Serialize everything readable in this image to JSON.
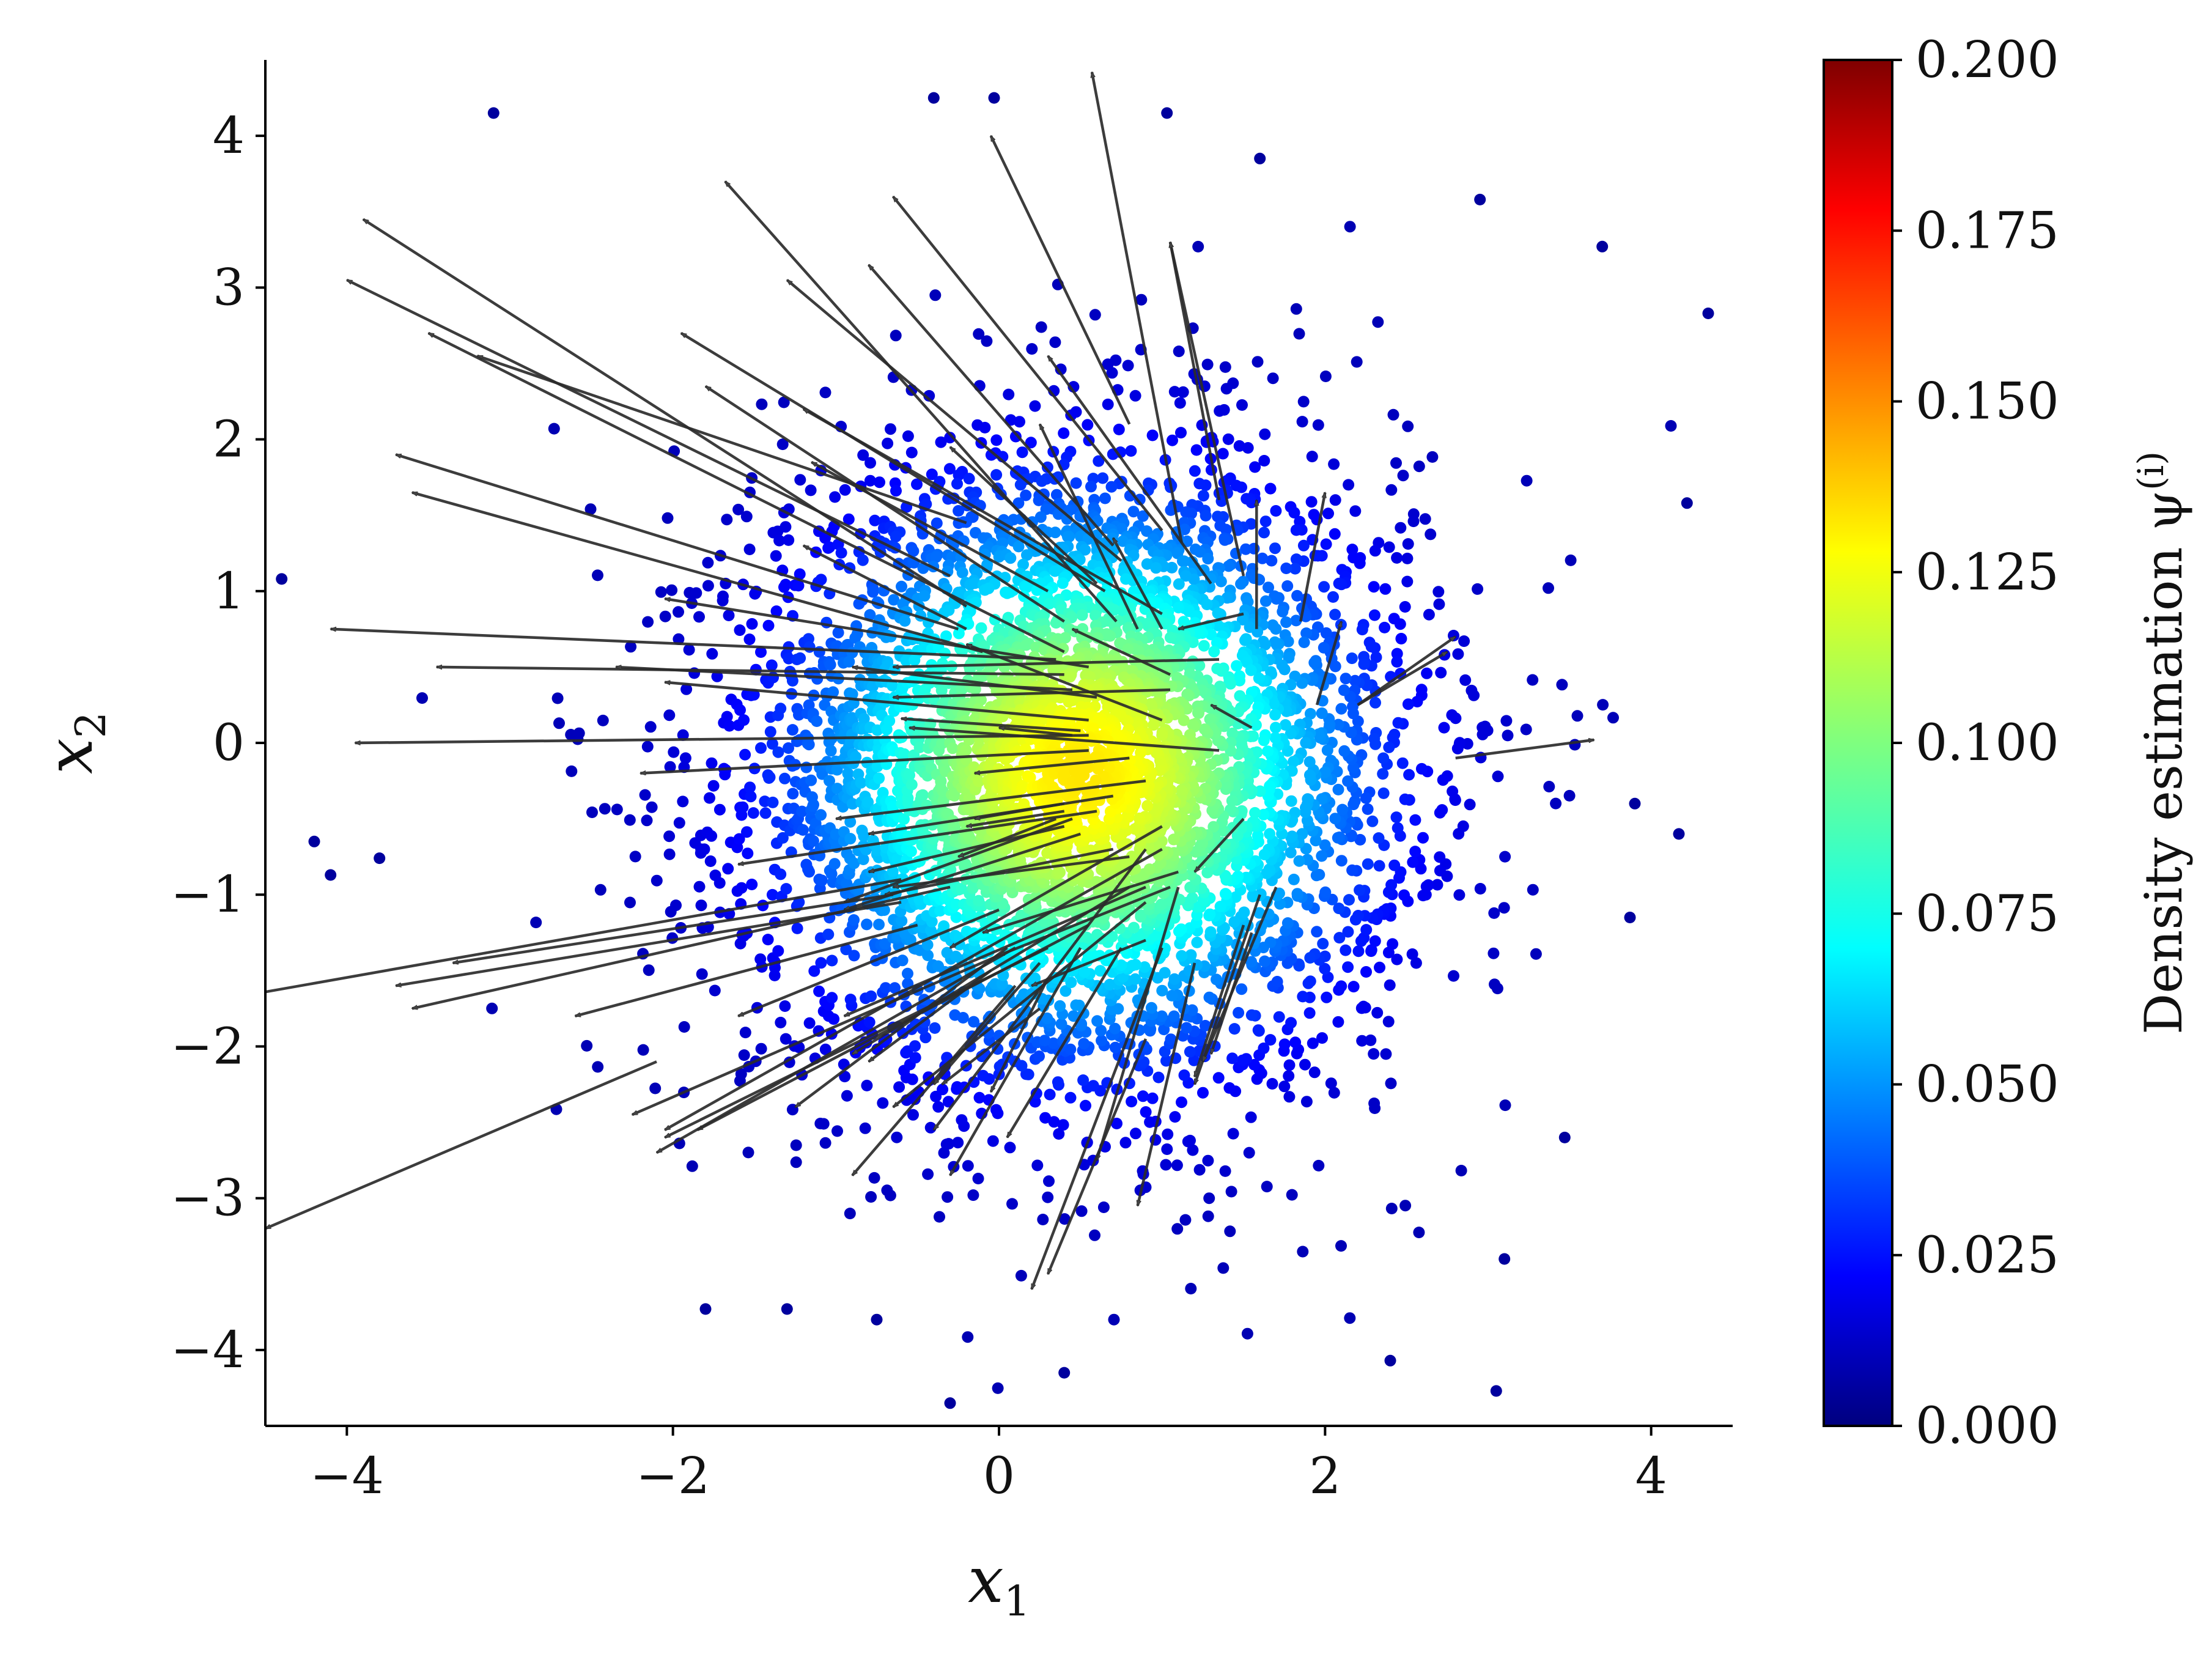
{
  "chart_data": {
    "type": "scatter",
    "xlabel": "x1",
    "ylabel": "x2",
    "xlim": [
      -4.5,
      4.5
    ],
    "ylim": [
      -4.5,
      4.5
    ],
    "xticks": [
      -4,
      -2,
      0,
      2,
      4
    ],
    "xtick_labels": [
      "−4",
      "−2",
      "0",
      "2",
      "4"
    ],
    "yticks": [
      -4,
      -3,
      -2,
      -1,
      0,
      1,
      2,
      3,
      4
    ],
    "ytick_labels": [
      "−4",
      "−3",
      "−2",
      "−1",
      "0",
      "1",
      "2",
      "3",
      "4"
    ],
    "grid": false,
    "colormap": "jet",
    "colorbar": {
      "label": "Density estimation ψ(i)",
      "range": [
        0.0,
        0.2
      ],
      "ticks": [
        0.0,
        0.025,
        0.05,
        0.075,
        0.1,
        0.125,
        0.15,
        0.175,
        0.2
      ],
      "tick_labels": [
        "0.000",
        "0.025",
        "0.050",
        "0.075",
        "0.100",
        "0.125",
        "0.150",
        "0.175",
        "0.200"
      ]
    },
    "points_summary": {
      "distribution": "approximately Gaussian cloud, several thousand points",
      "center": [
        0.5,
        -0.2
      ],
      "std": [
        1.0,
        1.05
      ],
      "value_range": [
        0.01,
        0.13
      ]
    },
    "outlier_points": [
      [
        -3.1,
        4.15
      ],
      [
        -0.4,
        4.25
      ],
      [
        -0.03,
        4.25
      ],
      [
        1.03,
        4.15
      ],
      [
        1.6,
        3.85
      ],
      [
        2.95,
        3.58
      ],
      [
        3.7,
        3.27
      ],
      [
        4.35,
        2.83
      ],
      [
        4.22,
        1.58
      ],
      [
        -4.4,
        1.08
      ],
      [
        -4.2,
        -0.65
      ],
      [
        -3.8,
        -0.76
      ],
      [
        -4.1,
        -0.87
      ],
      [
        -0.3,
        -4.35
      ],
      [
        0.4,
        -4.15
      ],
      [
        2.4,
        -4.07
      ],
      [
        3.05,
        -4.27
      ],
      [
        -1.8,
        -3.73
      ],
      [
        -1.3,
        -3.73
      ],
      [
        -0.75,
        -3.8
      ],
      [
        3.87,
        -1.15
      ],
      [
        4.17,
        -0.6
      ],
      [
        3.9,
        -0.4
      ],
      [
        3.47,
        -2.6
      ],
      [
        3.1,
        -3.4
      ]
    ],
    "arrows": [
      {
        "x": 1.12,
        "y": 1.32,
        "dx": -0.55,
        "dy": 3.1
      },
      {
        "x": 0.8,
        "y": 2.1,
        "dx": -0.85,
        "dy": 1.9
      },
      {
        "x": 1.5,
        "y": 1.1,
        "dx": -0.45,
        "dy": 2.2
      },
      {
        "x": 1.35,
        "y": 1.6,
        "dx": -0.3,
        "dy": 1.7
      },
      {
        "x": 0.72,
        "y": 0.8,
        "dx": -2.4,
        "dy": 2.9
      },
      {
        "x": 1.0,
        "y": 1.4,
        "dx": -1.65,
        "dy": 2.2
      },
      {
        "x": 0.7,
        "y": 1.3,
        "dx": -1.5,
        "dy": 1.85
      },
      {
        "x": 0.75,
        "y": 1.2,
        "dx": -2.05,
        "dy": 1.85
      },
      {
        "x": 0.65,
        "y": 1.0,
        "dx": -2.6,
        "dy": 1.7
      },
      {
        "x": 0.4,
        "y": 0.8,
        "dx": -2.2,
        "dy": 1.55
      },
      {
        "x": 1.0,
        "y": 0.85,
        "dx": -2.2,
        "dy": 1.35
      },
      {
        "x": -0.2,
        "y": 0.9,
        "dx": -3.7,
        "dy": 2.55
      },
      {
        "x": -0.3,
        "y": 1.1,
        "dx": -3.7,
        "dy": 1.95
      },
      {
        "x": -0.2,
        "y": 1.45,
        "dx": -3.0,
        "dy": 1.1
      },
      {
        "x": 0.4,
        "y": 0.6,
        "dx": -3.9,
        "dy": 2.1
      },
      {
        "x": -0.25,
        "y": 0.75,
        "dx": -3.45,
        "dy": 1.15
      },
      {
        "x": -0.1,
        "y": 0.6,
        "dx": -3.5,
        "dy": 1.05
      },
      {
        "x": -0.2,
        "y": 0.75,
        "dx": -1.0,
        "dy": 0.55
      },
      {
        "x": 0.3,
        "y": 1.0,
        "dx": -1.45,
        "dy": 0.85
      },
      {
        "x": 0.6,
        "y": 1.05,
        "dx": -0.9,
        "dy": 0.9
      },
      {
        "x": 1.3,
        "y": 1.05,
        "dx": -1.0,
        "dy": 1.5
      },
      {
        "x": 0.85,
        "y": 0.75,
        "dx": -0.6,
        "dy": 1.35
      },
      {
        "x": 0.35,
        "y": 0.55,
        "dx": -4.45,
        "dy": 0.2
      },
      {
        "x": 0.4,
        "y": 0.45,
        "dx": -3.85,
        "dy": 0.05
      },
      {
        "x": 0.45,
        "y": 0.35,
        "dx": -2.8,
        "dy": 0.15
      },
      {
        "x": 0.55,
        "y": 0.5,
        "dx": -2.6,
        "dy": 0.45
      },
      {
        "x": 0.55,
        "y": 0.15,
        "dx": -2.6,
        "dy": 0.25
      },
      {
        "x": 0.6,
        "y": 0.3,
        "dx": -1.5,
        "dy": 0.2
      },
      {
        "x": 0.55,
        "y": 0.05,
        "dx": -4.5,
        "dy": -0.05
      },
      {
        "x": 0.5,
        "y": 0.08,
        "dx": -1.1,
        "dy": 0.08
      },
      {
        "x": 0.45,
        "y": 0.05,
        "dx": -0.45,
        "dy": 0.05
      },
      {
        "x": 0.55,
        "y": -0.05,
        "dx": -2.75,
        "dy": -0.15
      },
      {
        "x": 0.8,
        "y": -0.1,
        "dx": -0.95,
        "dy": -0.1
      },
      {
        "x": 1.05,
        "y": 0.35,
        "dx": -1.7,
        "dy": -0.05
      },
      {
        "x": 1.0,
        "y": 0.15,
        "dx": -1.2,
        "dy": 0.5
      },
      {
        "x": 1.0,
        "y": 0.75,
        "dx": -0.3,
        "dy": 0.6
      },
      {
        "x": 1.55,
        "y": 0.1,
        "dx": -0.25,
        "dy": 0.15
      },
      {
        "x": 1.05,
        "y": 0.45,
        "dx": -0.6,
        "dy": 0.3
      },
      {
        "x": 1.35,
        "y": -0.05,
        "dx": -1.9,
        "dy": 0.15
      },
      {
        "x": 1.35,
        "y": 0.55,
        "dx": -2.0,
        "dy": -0.05
      },
      {
        "x": 1.5,
        "y": 0.85,
        "dx": -0.4,
        "dy": -0.1
      },
      {
        "x": 1.58,
        "y": 0.75,
        "dx": -0.0,
        "dy": 0.85
      },
      {
        "x": 1.85,
        "y": 0.8,
        "dx": 0.15,
        "dy": 0.85
      },
      {
        "x": 1.95,
        "y": 0.25,
        "dx": 0.15,
        "dy": 0.55
      },
      {
        "x": 2.2,
        "y": 0.25,
        "dx": 0.6,
        "dy": 0.45
      },
      {
        "x": 2.2,
        "y": 0.25,
        "dx": 0.55,
        "dy": 0.35
      },
      {
        "x": 2.8,
        "y": -0.1,
        "dx": 0.85,
        "dy": 0.12
      },
      {
        "x": 0.9,
        "y": -0.25,
        "dx": -1.9,
        "dy": -0.25
      },
      {
        "x": 0.7,
        "y": -0.35,
        "dx": -1.5,
        "dy": -0.25
      },
      {
        "x": 0.6,
        "y": -0.45,
        "dx": -2.2,
        "dy": -0.35
      },
      {
        "x": 0.4,
        "y": -0.55,
        "dx": -1.2,
        "dy": -0.3
      },
      {
        "x": 0.4,
        "y": -0.45,
        "dx": -0.6,
        "dy": -0.1
      },
      {
        "x": 0.35,
        "y": -0.5,
        "dx": -0.6,
        "dy": -0.25
      },
      {
        "x": 0.4,
        "y": -0.4,
        "dx": -0.55,
        "dy": -0.1
      },
      {
        "x": 0.45,
        "y": -0.5,
        "dx": -1.4,
        "dy": -0.55
      },
      {
        "x": 0.5,
        "y": -0.6,
        "dx": -1.45,
        "dy": -0.5
      },
      {
        "x": 0.7,
        "y": -0.7,
        "dx": -1.4,
        "dy": -0.3
      },
      {
        "x": 0.8,
        "y": -0.75,
        "dx": -1.45,
        "dy": -0.2
      },
      {
        "x": -0.6,
        "y": -0.9,
        "dx": -3.95,
        "dy": -0.75
      },
      {
        "x": -0.65,
        "y": -1.0,
        "dx": -2.7,
        "dy": -0.45
      },
      {
        "x": -0.6,
        "y": -1.05,
        "dx": -3.1,
        "dy": -0.55
      },
      {
        "x": -0.3,
        "y": -0.95,
        "dx": -3.3,
        "dy": -0.8
      },
      {
        "x": -0.5,
        "y": -1.2,
        "dx": -2.1,
        "dy": -0.6
      },
      {
        "x": 0.0,
        "y": -1.1,
        "dx": -1.6,
        "dy": -0.7
      },
      {
        "x": 0.9,
        "y": -0.95,
        "dx": -1.85,
        "dy": -0.85
      },
      {
        "x": 0.9,
        "y": -1.3,
        "dx": -0.7,
        "dy": -0.3
      },
      {
        "x": 1.05,
        "y": -0.95,
        "dx": -1.05,
        "dy": -0.45
      },
      {
        "x": 1.0,
        "y": -0.7,
        "dx": -3.05,
        "dy": -1.85
      },
      {
        "x": 1.1,
        "y": -0.85,
        "dx": -1.2,
        "dy": -0.4
      },
      {
        "x": 1.0,
        "y": -0.55,
        "dx": -1.3,
        "dy": -0.8
      },
      {
        "x": 0.8,
        "y": -0.95,
        "dx": -1.7,
        "dy": -1.1
      },
      {
        "x": 0.9,
        "y": -1.05,
        "dx": -1.55,
        "dy": -1.35
      },
      {
        "x": 0.55,
        "y": -1.2,
        "dx": -2.4,
        "dy": -1.35
      },
      {
        "x": 0.3,
        "y": -1.35,
        "dx": -2.35,
        "dy": -1.25
      },
      {
        "x": 0.1,
        "y": -1.35,
        "dx": -2.2,
        "dy": -1.35
      },
      {
        "x": 0.0,
        "y": -1.4,
        "dx": -2.25,
        "dy": -1.05
      },
      {
        "x": 0.05,
        "y": -1.35,
        "dx": -1.3,
        "dy": -1.05
      },
      {
        "x": -0.05,
        "y": -1.5,
        "dx": -0.75,
        "dy": -0.6
      },
      {
        "x": 0.25,
        "y": -1.75,
        "dx": -0.6,
        "dy": -0.5
      },
      {
        "x": 0.1,
        "y": -1.6,
        "dx": -1.0,
        "dy": -1.25
      },
      {
        "x": 0.25,
        "y": -1.45,
        "dx": -0.65,
        "dy": -0.8
      },
      {
        "x": 0.3,
        "y": -1.55,
        "dx": -0.35,
        "dy": -0.75
      },
      {
        "x": 0.5,
        "y": -1.35,
        "dx": -0.8,
        "dy": -1.5
      },
      {
        "x": 0.75,
        "y": -1.35,
        "dx": -0.7,
        "dy": -1.25
      },
      {
        "x": 0.9,
        "y": -0.7,
        "dx": -1.3,
        "dy": -1.85
      },
      {
        "x": 1.1,
        "y": -0.95,
        "dx": -0.5,
        "dy": -1.8
      },
      {
        "x": 1.2,
        "y": -1.45,
        "dx": -0.35,
        "dy": -1.6
      },
      {
        "x": 1.0,
        "y": -1.35,
        "dx": -0.8,
        "dy": -2.25
      },
      {
        "x": 0.9,
        "y": -1.95,
        "dx": -0.6,
        "dy": -1.55
      },
      {
        "x": 1.6,
        "y": -1.0,
        "dx": -0.4,
        "dy": -1.25
      },
      {
        "x": 1.5,
        "y": -1.2,
        "dx": -0.3,
        "dy": -1.0
      },
      {
        "x": 1.7,
        "y": -0.95,
        "dx": -0.45,
        "dy": -1.15
      },
      {
        "x": 1.55,
        "y": -1.25,
        "dx": -0.25,
        "dy": -0.8
      },
      {
        "x": -2.1,
        "y": -2.1,
        "dx": -2.4,
        "dy": -1.1
      },
      {
        "x": 1.5,
        "y": -0.5,
        "dx": -0.3,
        "dy": -0.35
      }
    ]
  }
}
